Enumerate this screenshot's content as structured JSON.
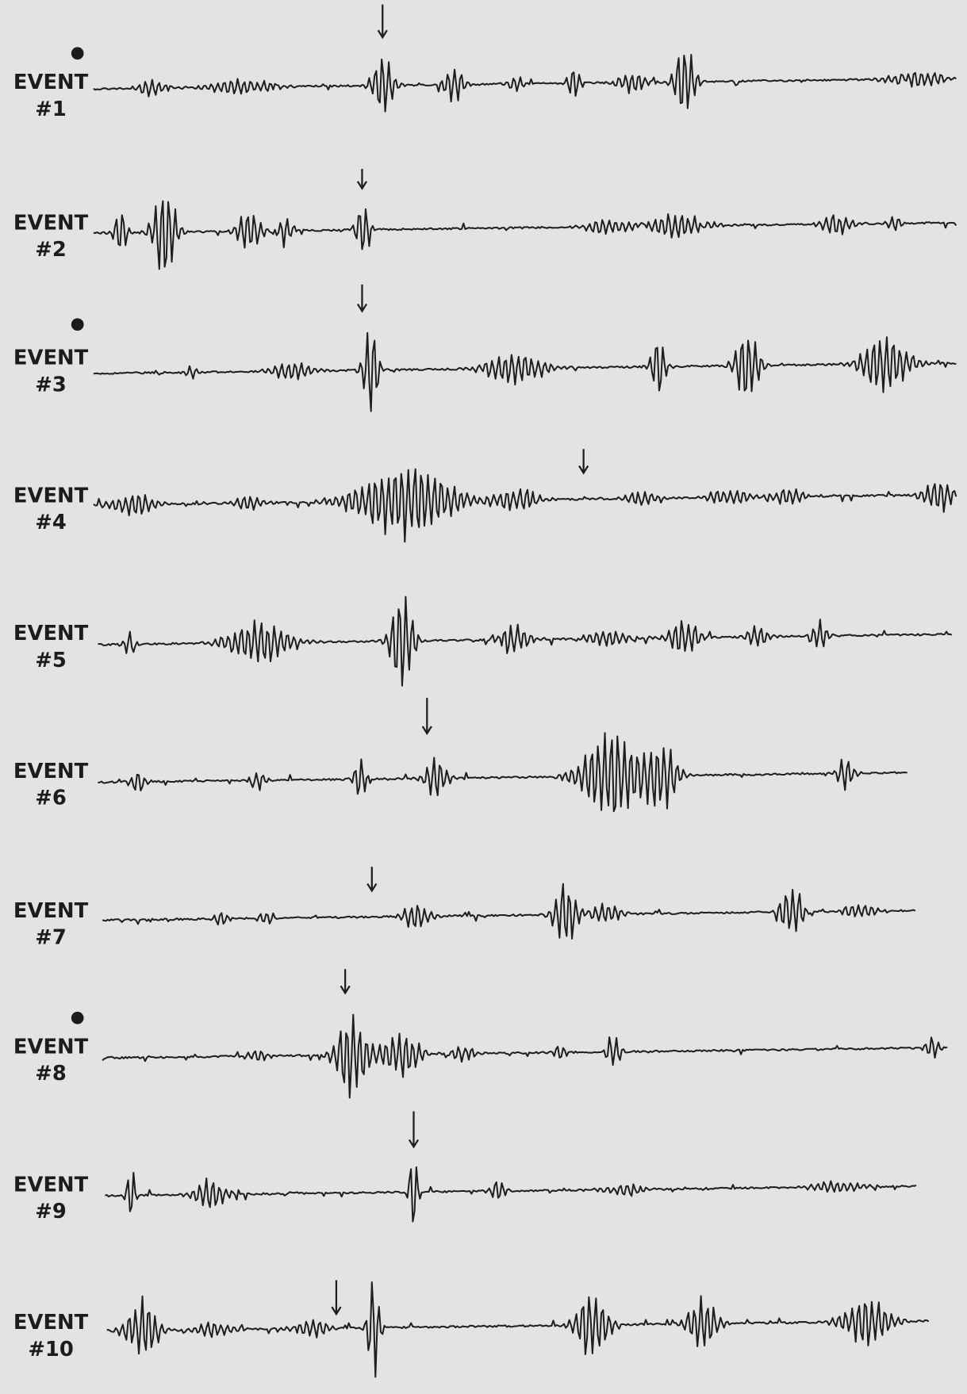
{
  "events": [
    {
      "label": "EVENT",
      "number": "#1"
    },
    {
      "label": "EVENT",
      "number": "#2"
    },
    {
      "label": "EVENT",
      "number": "#3"
    },
    {
      "label": "EVENT",
      "number": "#4"
    },
    {
      "label": "EVENT",
      "number": "#5"
    },
    {
      "label": "EVENT",
      "number": "#6"
    },
    {
      "label": "EVENT",
      "number": "#7"
    },
    {
      "label": "EVENT",
      "number": "#8"
    },
    {
      "label": "EVENT",
      "number": "#9"
    },
    {
      "label": "EVENT",
      "number": "#10"
    }
  ]
}
